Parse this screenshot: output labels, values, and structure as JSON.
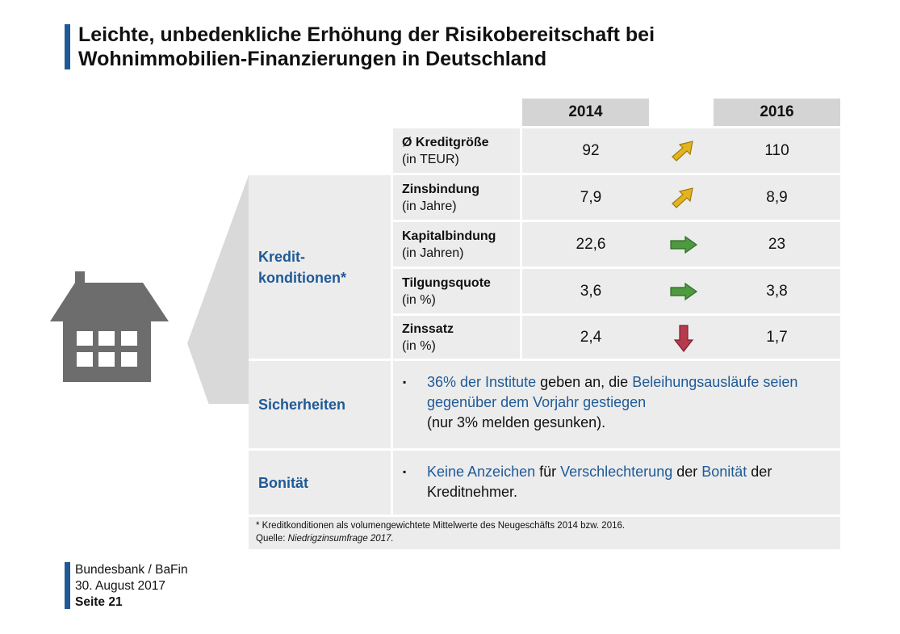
{
  "title": {
    "line1": "Leichte, unbedenkliche Erhöhung der Risikobereitschaft bei",
    "line2": "Wohnimmobilien-Finanzierungen in Deutschland"
  },
  "table": {
    "year_a": "2014",
    "year_b": "2016",
    "rows": [
      {
        "label": "Ø Kreditgröße",
        "unit": "(in TEUR)",
        "a": "92",
        "b": "110",
        "trend": "up"
      },
      {
        "label": "Zinsbindung",
        "unit": "(in Jahre)",
        "a": "7,9",
        "b": "8,9",
        "trend": "up"
      },
      {
        "label": "Kapitalbindung",
        "unit": "(in Jahren)",
        "a": "22,6",
        "b": "23",
        "trend": "flat"
      },
      {
        "label": "Tilgungsquote",
        "unit": "(in %)",
        "a": "3,6",
        "b": "3,8",
        "trend": "flat"
      },
      {
        "label": "Zinssatz",
        "unit": "(in %)",
        "a": "2,4",
        "b": "1,7",
        "trend": "down"
      }
    ]
  },
  "categories": {
    "kredit_line1": "Kredit-",
    "kredit_line2": "konditionen*",
    "sicherheiten": "Sicherheiten",
    "bonitaet": "Bonität"
  },
  "sicherheiten_text": {
    "bullet": "▪",
    "p1": "36% der Institute",
    "p2": " geben an, die ",
    "p3": "Beleihungsausläufe seien gegenüber dem Vorjahr gestiegen",
    "p4": "(nur 3% melden gesunken)."
  },
  "bonitaet_text": {
    "bullet": "▪",
    "p1": "Keine Anzeichen",
    "p2": " für ",
    "p3": "Verschlechterung",
    "p4": " der ",
    "p5": "Bonität",
    "p6": " der Kreditnehmer."
  },
  "footnote": {
    "line1": "* Kreditkonditionen als volumengewichtete Mittelwerte des Neugeschäfts 2014 bzw. 2016.",
    "source_label": "Quelle: ",
    "source_name": "Niedrigzinsumfrage 2017."
  },
  "source": {
    "org": "Bundesbank / BaFin",
    "date": "30. August 2017",
    "page": "Seite 21"
  },
  "colors": {
    "accent": "#1f5a96",
    "header_bg": "#d4d4d4",
    "cell_bg": "#ececec",
    "arrow_up": "#e4b41e",
    "arrow_flat": "#4d9a3f",
    "arrow_down": "#b73a4c"
  }
}
